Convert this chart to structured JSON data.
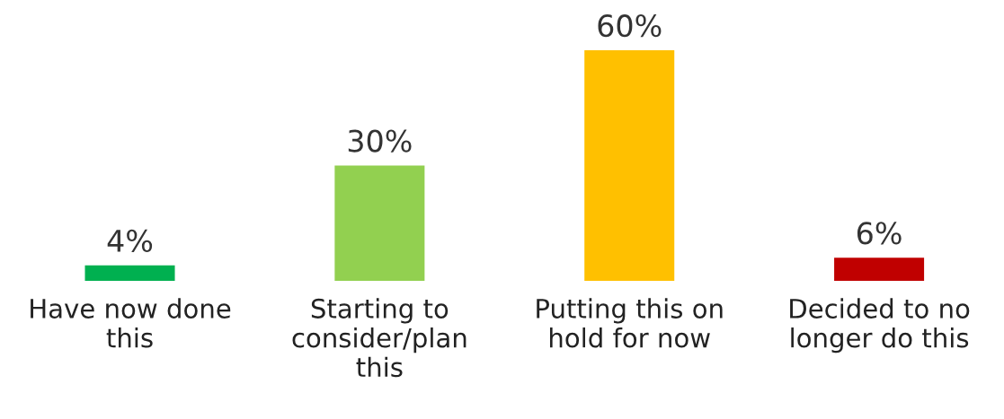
{
  "chart_data": {
    "type": "bar",
    "categories": [
      "Have now done\nthis",
      "Starting to\nconsider/plan\nthis",
      "Putting this on\nhold for now",
      "Decided to no\nlonger do this"
    ],
    "values": [
      4,
      30,
      60,
      6
    ],
    "colors": [
      "#00b050",
      "#92d050",
      "#ffc000",
      "#c00000"
    ],
    "value_labels": [
      "4%",
      "30%",
      "60%",
      "6%"
    ],
    "grid": false,
    "legend": false,
    "tick_labels": "x"
  }
}
